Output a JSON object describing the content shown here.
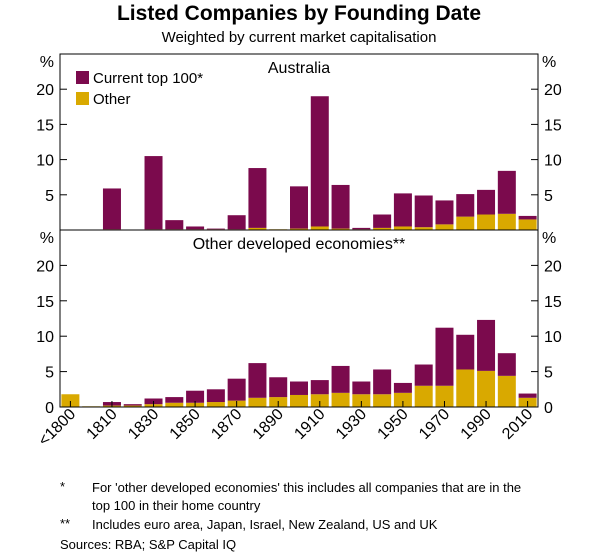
{
  "title": "Listed Companies by Founding Date",
  "subtitle": "Weighted by current market capitalisation",
  "colors": {
    "current_top100": "#7b0a4d",
    "other": "#d9a900"
  },
  "chart_data": [
    {
      "type": "bar",
      "stacked": true,
      "panel_title": "Australia",
      "unit_label": "%",
      "ylim": [
        0,
        25
      ],
      "yticks": [
        5,
        10,
        15,
        20
      ],
      "legend": {
        "placement": "top-left",
        "entries": [
          "Current top 100*",
          "Other"
        ]
      },
      "categories": [
        "<1800",
        "1800",
        "1810",
        "1820",
        "1830",
        "1840",
        "1850",
        "1860",
        "1870",
        "1880",
        "1890",
        "1900",
        "1910",
        "1920",
        "1930",
        "1940",
        "1950",
        "1960",
        "1970",
        "1980",
        "1990",
        "2000",
        "2010"
      ],
      "series": [
        {
          "name": "Other",
          "values": [
            0,
            0,
            0.1,
            0,
            0.1,
            0.1,
            0.1,
            0.1,
            0.1,
            0.3,
            0.1,
            0.2,
            0.5,
            0.2,
            0.1,
            0.3,
            0.5,
            0.4,
            0.8,
            1.9,
            2.2,
            2.3,
            1.5
          ]
        },
        {
          "name": "Current top 100*",
          "values": [
            0,
            0,
            5.8,
            0,
            10.4,
            1.3,
            0.4,
            0.1,
            2.0,
            8.5,
            0,
            6.0,
            18.5,
            6.2,
            0.2,
            1.9,
            4.7,
            4.5,
            3.4,
            3.2,
            3.5,
            6.1,
            0.5
          ]
        }
      ]
    },
    {
      "type": "bar",
      "stacked": true,
      "panel_title": "Other developed economies**",
      "unit_label": "%",
      "ylim": [
        0,
        25
      ],
      "yticks": [
        0,
        5,
        10,
        15,
        20
      ],
      "categories": [
        "<1800",
        "1800",
        "1810",
        "1820",
        "1830",
        "1840",
        "1850",
        "1860",
        "1870",
        "1880",
        "1890",
        "1900",
        "1910",
        "1920",
        "1930",
        "1940",
        "1950",
        "1960",
        "1970",
        "1980",
        "1990",
        "2000",
        "2010"
      ],
      "x_tick_labels": [
        "<1800",
        "1810",
        "1830",
        "1850",
        "1870",
        "1890",
        "1910",
        "1930",
        "1950",
        "1970",
        "1990",
        "2010"
      ],
      "series": [
        {
          "name": "Other",
          "values": [
            1.8,
            0.1,
            0.2,
            0.2,
            0.4,
            0.6,
            0.6,
            0.7,
            0.9,
            1.3,
            1.4,
            1.7,
            1.8,
            2.0,
            1.8,
            1.8,
            2.0,
            3.0,
            3.0,
            5.3,
            5.1,
            4.4,
            1.3
          ]
        },
        {
          "name": "Current top 100*",
          "values": [
            0,
            0,
            0.5,
            0.2,
            0.8,
            0.8,
            1.7,
            1.8,
            3.1,
            4.9,
            2.8,
            1.9,
            2.0,
            3.8,
            1.8,
            3.5,
            1.4,
            3.0,
            8.2,
            4.9,
            7.2,
            3.2,
            0.6
          ]
        }
      ]
    }
  ],
  "footnotes": [
    {
      "mark": "*",
      "text": "For 'other developed economies' this includes all companies that are in the top 100 in their home country"
    },
    {
      "mark": "**",
      "text": "Includes euro area, Japan, Israel, New Zealand, US and UK"
    }
  ],
  "sources": "Sources:   RBA; S&P Capital IQ"
}
